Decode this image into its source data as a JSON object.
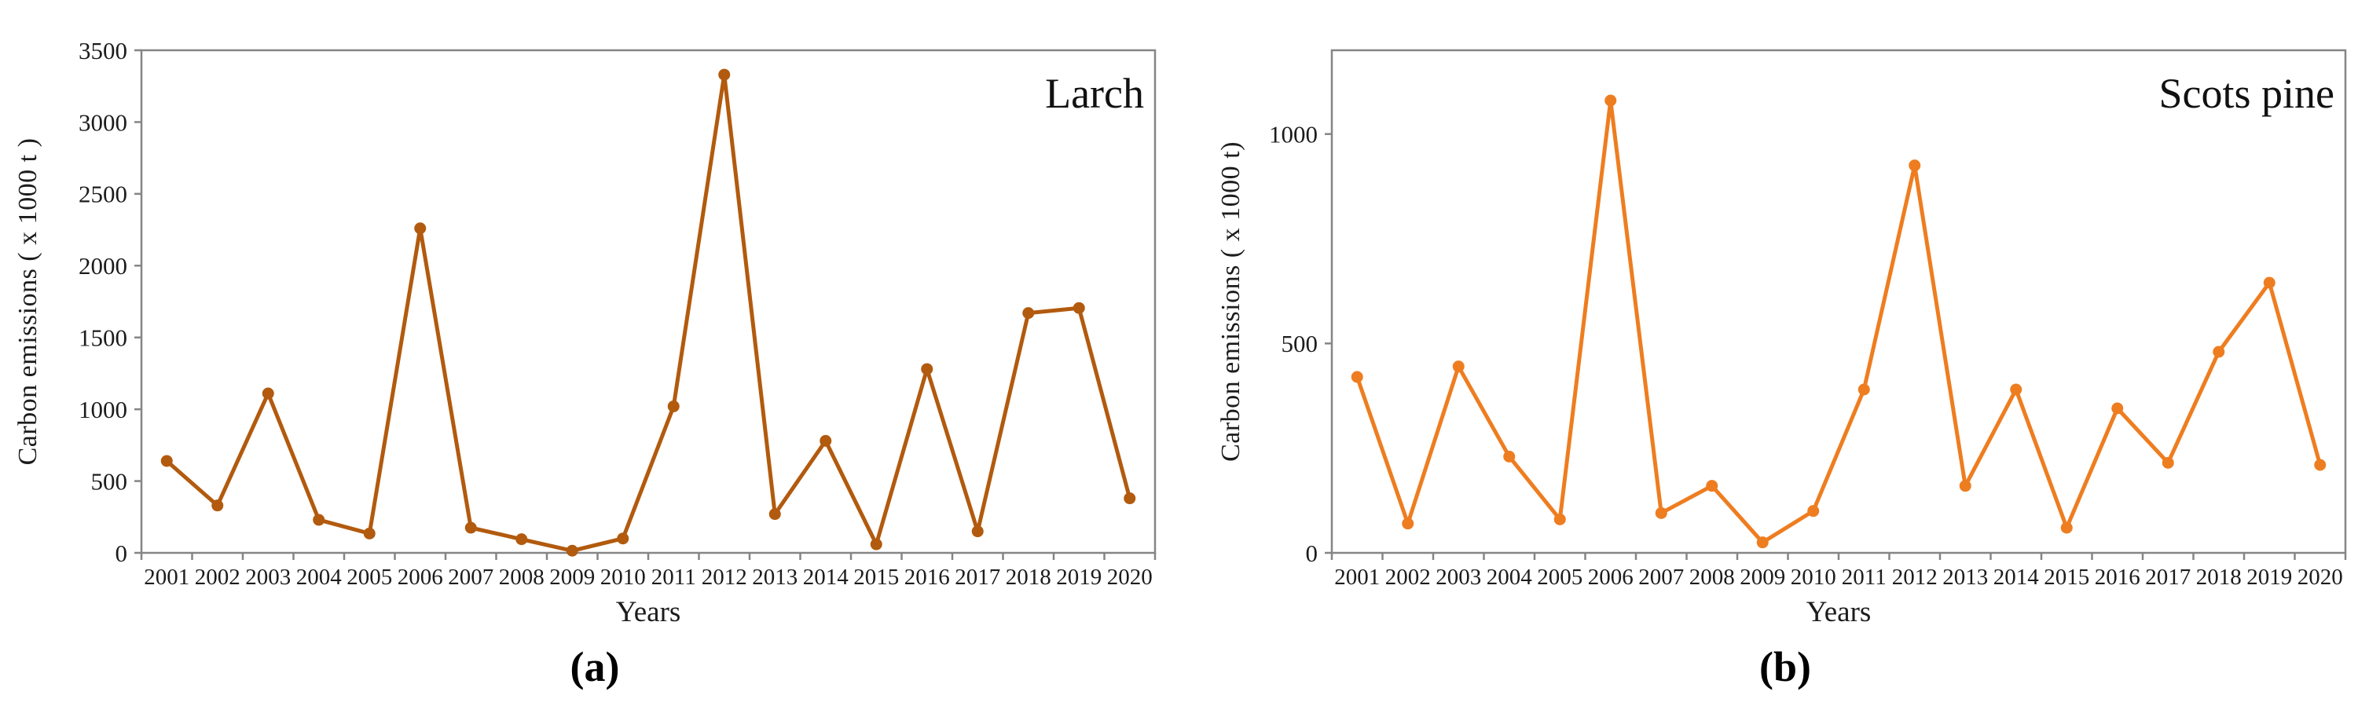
{
  "figure": {
    "panels": [
      {
        "caption": "(a)"
      },
      {
        "caption": "(b)"
      }
    ]
  },
  "chart_data": [
    {
      "type": "line",
      "title": "Larch",
      "xlabel": "Years",
      "ylabel": "Carbon emissions ( x 1000 t )",
      "caption": "(a)",
      "line_color": "#B25A0E",
      "marker_color": "#B25A0E",
      "axis_color": "#858585",
      "categories": [
        "2001",
        "2002",
        "2003",
        "2004",
        "2005",
        "2006",
        "2007",
        "2008",
        "2009",
        "2010",
        "2011",
        "2012",
        "2013",
        "2014",
        "2015",
        "2016",
        "2017",
        "2018",
        "2019",
        "2020"
      ],
      "values": [
        640,
        330,
        1110,
        230,
        135,
        2260,
        175,
        95,
        15,
        100,
        1020,
        3330,
        270,
        780,
        60,
        1280,
        150,
        1670,
        1705,
        380
      ],
      "ylim": [
        0,
        3500
      ],
      "yticks": [
        0,
        500,
        1000,
        1500,
        2000,
        2500,
        3000,
        3500
      ],
      "grid": false,
      "legend": "none",
      "title_position": "top-right-inside"
    },
    {
      "type": "line",
      "title": "Scots pine",
      "xlabel": "Years",
      "ylabel": "Carbon emissions ( x 1000 t)",
      "caption": "(b)",
      "line_color": "#EE7D20",
      "marker_color": "#EE7D20",
      "axis_color": "#858585",
      "categories": [
        "2001",
        "2002",
        "2003",
        "2004",
        "2005",
        "2006",
        "2007",
        "2008",
        "2009",
        "2010",
        "2011",
        "2012",
        "2013",
        "2014",
        "2015",
        "2016",
        "2017",
        "2018",
        "2019",
        "2020"
      ],
      "values": [
        420,
        70,
        445,
        230,
        80,
        1080,
        95,
        160,
        25,
        100,
        390,
        925,
        160,
        390,
        60,
        345,
        215,
        480,
        645,
        210
      ],
      "ylim": [
        0,
        1200
      ],
      "yticks": [
        0,
        500,
        1000
      ],
      "grid": false,
      "legend": "none",
      "title_position": "top-right-inside"
    }
  ]
}
